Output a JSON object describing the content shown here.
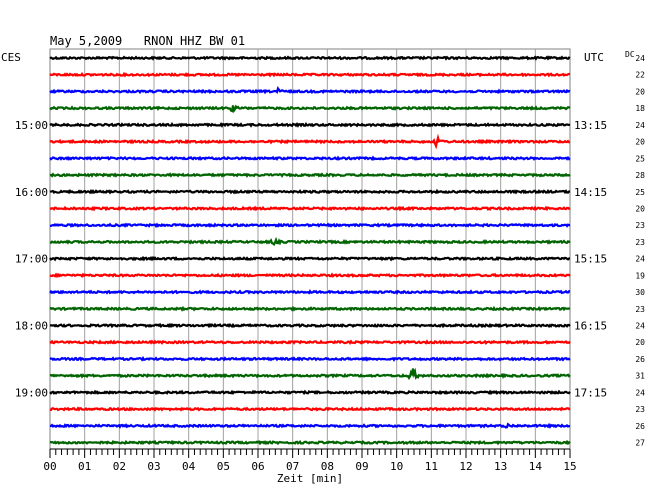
{
  "chart_data": {
    "type": "line",
    "title": "May 5,2009   RNON HHZ BW 01",
    "left_zone_label": "CES",
    "right_zone_label": "UTC",
    "dc_header": "DC",
    "xlabel": "Zeit [min]",
    "x_ticks": [
      "00",
      "01",
      "02",
      "03",
      "04",
      "05",
      "06",
      "07",
      "08",
      "09",
      "10",
      "11",
      "12",
      "13",
      "14",
      "15"
    ],
    "xlim": [
      0,
      15
    ],
    "left_time_labels": [
      "15:00",
      "16:00",
      "17:00",
      "18:00",
      "19:00"
    ],
    "right_time_labels": [
      "13:15",
      "14:15",
      "15:15",
      "16:15",
      "17:15"
    ],
    "time_label_every": 4,
    "time_label_first_trace": 4,
    "colors": [
      "#000000",
      "#ff0000",
      "#0000ff",
      "#006400"
    ],
    "traces": [
      {
        "dc": "24",
        "color_index": 0,
        "noise": 0.9,
        "events": []
      },
      {
        "dc": "22",
        "color_index": 1,
        "noise": 0.9,
        "events": []
      },
      {
        "dc": "20",
        "color_index": 2,
        "noise": 0.9,
        "events": [
          {
            "t": 6.5,
            "amp": 3
          }
        ]
      },
      {
        "dc": "18",
        "color_index": 3,
        "noise": 0.9,
        "events": [
          {
            "t": 5.2,
            "amp": 3
          }
        ]
      },
      {
        "dc": "24",
        "color_index": 0,
        "noise": 0.9,
        "events": []
      },
      {
        "dc": "20",
        "color_index": 1,
        "noise": 0.9,
        "events": [
          {
            "t": 11.1,
            "amp": 5
          }
        ]
      },
      {
        "dc": "25",
        "color_index": 2,
        "noise": 0.9,
        "events": []
      },
      {
        "dc": "28",
        "color_index": 3,
        "noise": 0.9,
        "events": []
      },
      {
        "dc": "25",
        "color_index": 0,
        "noise": 0.9,
        "events": []
      },
      {
        "dc": "20",
        "color_index": 1,
        "noise": 0.9,
        "events": []
      },
      {
        "dc": "23",
        "color_index": 2,
        "noise": 0.9,
        "events": []
      },
      {
        "dc": "23",
        "color_index": 3,
        "noise": 0.9,
        "events": [
          {
            "t": 6.4,
            "amp": 2.5
          }
        ]
      },
      {
        "dc": "24",
        "color_index": 0,
        "noise": 0.9,
        "events": []
      },
      {
        "dc": "19",
        "color_index": 1,
        "noise": 0.9,
        "events": []
      },
      {
        "dc": "30",
        "color_index": 2,
        "noise": 0.9,
        "events": []
      },
      {
        "dc": "23",
        "color_index": 3,
        "noise": 0.9,
        "events": []
      },
      {
        "dc": "24",
        "color_index": 0,
        "noise": 0.9,
        "events": []
      },
      {
        "dc": "20",
        "color_index": 1,
        "noise": 0.9,
        "events": []
      },
      {
        "dc": "26",
        "color_index": 2,
        "noise": 0.9,
        "events": []
      },
      {
        "dc": "31",
        "color_index": 3,
        "noise": 0.9,
        "events": [
          {
            "t": 10.4,
            "amp": 8
          }
        ]
      },
      {
        "dc": "24",
        "color_index": 0,
        "noise": 0.9,
        "events": []
      },
      {
        "dc": "23",
        "color_index": 1,
        "noise": 0.9,
        "events": []
      },
      {
        "dc": "26",
        "color_index": 2,
        "noise": 0.9,
        "events": [
          {
            "t": 13.1,
            "amp": 2.5
          }
        ]
      },
      {
        "dc": "27",
        "color_index": 3,
        "noise": 0.9,
        "events": []
      }
    ]
  }
}
